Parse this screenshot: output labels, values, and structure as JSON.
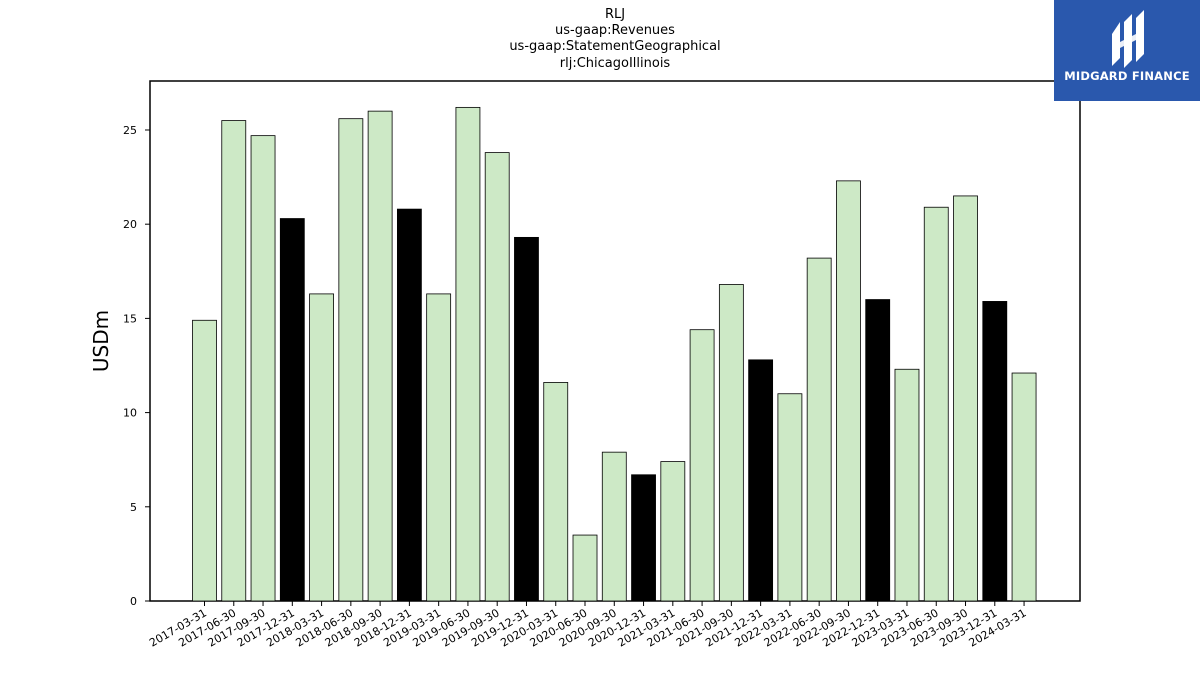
{
  "chart_data": {
    "type": "bar",
    "title_lines": [
      "RLJ",
      "us-gaap:Revenues",
      "us-gaap:StatementGeographical",
      "rlj:ChicagoIllinois"
    ],
    "ylabel": "USDm",
    "xlabel": "",
    "ylim": [
      0,
      27.6
    ],
    "yticks": [
      0,
      5,
      10,
      15,
      20,
      25
    ],
    "grid": false,
    "categories": [
      "2017-03-31",
      "2017-06-30",
      "2017-09-30",
      "2017-12-31",
      "2018-03-31",
      "2018-06-30",
      "2018-09-30",
      "2018-12-31",
      "2019-03-31",
      "2019-06-30",
      "2019-09-30",
      "2019-12-31",
      "2020-03-31",
      "2020-06-30",
      "2020-09-30",
      "2020-12-31",
      "2021-03-31",
      "2021-06-30",
      "2021-09-30",
      "2021-12-31",
      "2022-03-31",
      "2022-06-30",
      "2022-09-30",
      "2022-12-31",
      "2023-03-31",
      "2023-06-30",
      "2023-09-30",
      "2023-12-31",
      "2024-03-31"
    ],
    "values": [
      14.9,
      25.5,
      24.7,
      20.3,
      16.3,
      25.6,
      26.0,
      20.8,
      16.3,
      26.2,
      23.8,
      19.3,
      11.6,
      3.5,
      7.9,
      6.7,
      7.4,
      14.4,
      16.8,
      12.8,
      11.0,
      18.2,
      22.3,
      16.0,
      12.3,
      20.9,
      21.5,
      15.9,
      12.1
    ],
    "colors": {
      "default": "#cde9c6",
      "highlight": "#000000",
      "edge": "#000000"
    },
    "highlight_categories": [
      "2017-12-31",
      "2018-12-31",
      "2019-12-31",
      "2020-12-31",
      "2021-12-31",
      "2022-12-31",
      "2023-12-31"
    ]
  },
  "logo": {
    "text": "MIDGARD FINANCE",
    "background": "#2a58ad",
    "icon": "midgard-logo-mark-icon"
  }
}
